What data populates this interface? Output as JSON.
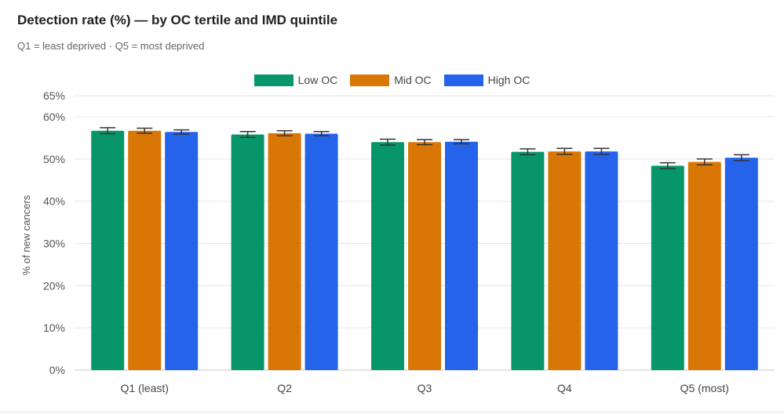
{
  "header": {
    "title": "Detection rate (%) — by OC tertile and IMD quintile",
    "subtitle": "Q1 = least deprived · Q5 = most deprived"
  },
  "chart_data": {
    "type": "bar",
    "title": "Detection rate (%) — by OC tertile and IMD quintile",
    "subtitle": "Q1 = least deprived · Q5 = most deprived",
    "xlabel": "",
    "ylabel": "% of new cancers",
    "ylim": [
      0,
      65
    ],
    "yticks": [
      0,
      10,
      20,
      30,
      40,
      50,
      60,
      65
    ],
    "ytick_labels": [
      "0%",
      "10%",
      "20%",
      "30%",
      "40%",
      "50%",
      "60%",
      "65%"
    ],
    "grid": true,
    "legend_position": "top-center",
    "categories": [
      "Q1 (least)",
      "Q2",
      "Q3",
      "Q4",
      "Q5 (most)"
    ],
    "series": [
      {
        "name": "Low OC",
        "color": "#079669",
        "values": [
          56.7,
          55.8,
          54.0,
          51.7,
          48.4
        ],
        "error_low": [
          56.0,
          55.1,
          53.3,
          51.0,
          47.7
        ],
        "error_high": [
          57.4,
          56.5,
          54.7,
          52.4,
          49.1
        ]
      },
      {
        "name": "Mid OC",
        "color": "#D97706",
        "values": [
          56.7,
          56.1,
          54.0,
          51.8,
          49.3
        ],
        "error_low": [
          56.1,
          55.5,
          53.4,
          51.1,
          48.6
        ],
        "error_high": [
          57.3,
          56.7,
          54.6,
          52.5,
          50.0
        ]
      },
      {
        "name": "High OC",
        "color": "#2563EB",
        "values": [
          56.4,
          56.0,
          54.1,
          51.8,
          50.3
        ],
        "error_low": [
          55.9,
          55.5,
          53.6,
          51.1,
          49.6
        ],
        "error_high": [
          56.9,
          56.5,
          54.6,
          52.5,
          51.0
        ]
      }
    ]
  }
}
